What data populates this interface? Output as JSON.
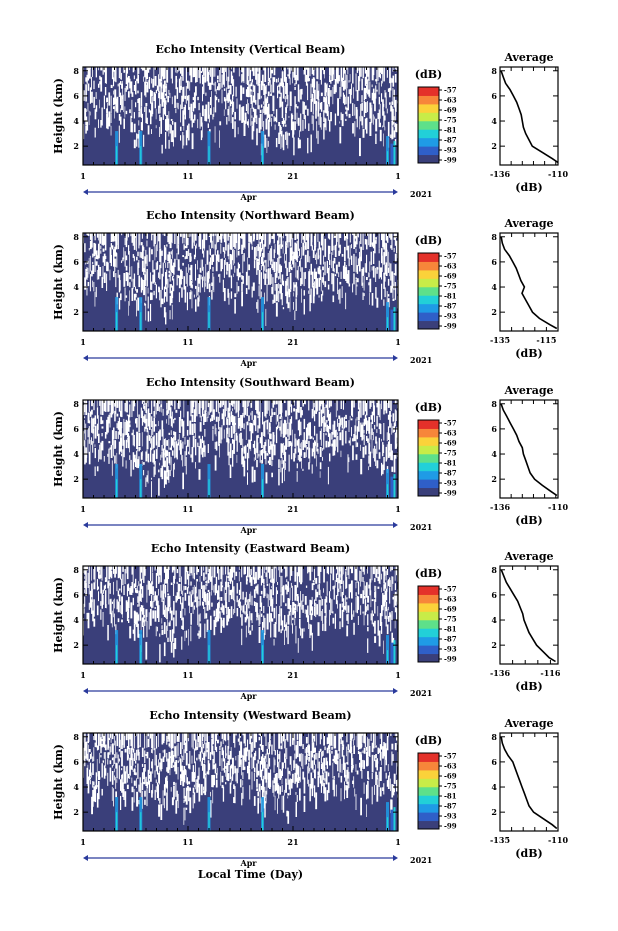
{
  "figure": {
    "shared_xlabel": "Local Time (Day)",
    "month_label": "Apr",
    "year_label": "2021",
    "colors": {
      "background": "#3a3f7a",
      "echo_gap": "#ffffff",
      "colormap": [
        "#3a3f7a",
        "#2f5fc8",
        "#1f9be6",
        "#22d0d8",
        "#5ee08a",
        "#c8ec48",
        "#fbd23a",
        "#f7863a",
        "#e4312a"
      ]
    }
  },
  "chart_data": [
    {
      "type": "heatmap",
      "title": "Echo Intensity (Vertical Beam)",
      "ylabel": "Height (km)",
      "yticks": [
        "2",
        "4",
        "6",
        "8"
      ],
      "ylim": [
        0.5,
        8.3
      ],
      "xticks": [
        "1",
        "11",
        "21",
        "1"
      ],
      "xlim_days": [
        1,
        31
      ],
      "colorbar": {
        "label": "(dB)",
        "ticks": [
          "-57",
          "-63",
          "-69",
          "-75",
          "-81",
          "-87",
          "-93",
          "-99"
        ]
      },
      "bright_columns_day": [
        4.2,
        6.5,
        13.0,
        18.1,
        30.0
      ],
      "profile": {
        "title": "Average",
        "xlabel": "(dB)",
        "xticks": [
          "-136",
          "-110"
        ],
        "xlim": [
          -136,
          -110
        ],
        "yticks": [
          "2",
          "4",
          "6",
          "8"
        ],
        "heights": [
          8.0,
          7.5,
          7.0,
          6.5,
          6.0,
          5.5,
          5.0,
          4.5,
          4.0,
          3.5,
          3.0,
          2.5,
          2.0,
          1.5,
          1.0,
          0.7
        ],
        "values": [
          -135.5,
          -134.5,
          -133.5,
          -131.5,
          -130.0,
          -128.5,
          -127.5,
          -126.5,
          -126.0,
          -125.5,
          -124.5,
          -123.0,
          -121.5,
          -117.0,
          -112.5,
          -110.0
        ]
      }
    },
    {
      "type": "heatmap",
      "title": "Echo Intensity (Northward Beam)",
      "ylabel": "Height (km)",
      "yticks": [
        "2",
        "4",
        "6",
        "8"
      ],
      "ylim": [
        0.5,
        8.3
      ],
      "xticks": [
        "1",
        "11",
        "21",
        "1"
      ],
      "xlim_days": [
        1,
        31
      ],
      "colorbar": {
        "label": "(dB)",
        "ticks": [
          "-57",
          "-63",
          "-69",
          "-75",
          "-81",
          "-87",
          "-93",
          "-99"
        ]
      },
      "bright_columns_day": [
        4.2,
        6.5,
        13.0,
        18.1,
        30.0
      ],
      "profile": {
        "title": "Average",
        "xlabel": "(dB)",
        "xticks": [
          "-135",
          "-115"
        ],
        "xlim": [
          -135,
          -110
        ],
        "yticks": [
          "2",
          "4",
          "6",
          "8"
        ],
        "heights": [
          8.0,
          7.5,
          7.0,
          6.5,
          6.0,
          5.5,
          5.0,
          4.5,
          4.0,
          3.5,
          3.0,
          2.5,
          2.0,
          1.5,
          1.0,
          0.7
        ],
        "values": [
          -134.5,
          -134.0,
          -133.0,
          -131.0,
          -129.5,
          -128.0,
          -127.0,
          -126.0,
          -124.5,
          -125.5,
          -124.0,
          -122.5,
          -121.0,
          -118.0,
          -113.5,
          -110.5
        ]
      }
    },
    {
      "type": "heatmap",
      "title": "Echo Intensity (Southward Beam)",
      "ylabel": "Height (km)",
      "yticks": [
        "2",
        "4",
        "6",
        "8"
      ],
      "ylim": [
        0.5,
        8.3
      ],
      "xticks": [
        "1",
        "11",
        "21",
        "1"
      ],
      "xlim_days": [
        1,
        31
      ],
      "colorbar": {
        "label": "(dB)",
        "ticks": [
          "-57",
          "-63",
          "-69",
          "-75",
          "-81",
          "-87",
          "-93",
          "-99"
        ]
      },
      "bright_columns_day": [
        4.2,
        6.5,
        13.0,
        18.1,
        30.0
      ],
      "profile": {
        "title": "Average",
        "xlabel": "(dB)",
        "xticks": [
          "-136",
          "-110"
        ],
        "xlim": [
          -136,
          -110
        ],
        "yticks": [
          "2",
          "4",
          "6",
          "8"
        ],
        "heights": [
          8.0,
          7.5,
          7.0,
          6.5,
          6.0,
          5.5,
          5.0,
          4.5,
          4.0,
          3.5,
          3.0,
          2.5,
          2.0,
          1.5,
          1.0,
          0.7
        ],
        "values": [
          -135.5,
          -134.5,
          -133.0,
          -131.5,
          -130.0,
          -128.5,
          -127.5,
          -126.0,
          -125.5,
          -124.5,
          -123.5,
          -122.5,
          -120.5,
          -117.0,
          -113.0,
          -110.5
        ]
      }
    },
    {
      "type": "heatmap",
      "title": "Echo Intensity (Eastward Beam)",
      "ylabel": "Height (km)",
      "yticks": [
        "2",
        "4",
        "6",
        "8"
      ],
      "ylim": [
        0.5,
        8.3
      ],
      "xticks": [
        "1",
        "11",
        "21",
        "1"
      ],
      "xlim_days": [
        1,
        31
      ],
      "colorbar": {
        "label": "(dB)",
        "ticks": [
          "-57",
          "-63",
          "-69",
          "-75",
          "-81",
          "-87",
          "-93",
          "-99"
        ]
      },
      "bright_columns_day": [
        4.2,
        6.5,
        13.0,
        18.1,
        30.0
      ],
      "profile": {
        "title": "Average",
        "xlabel": "(dB)",
        "xticks": [
          "-136",
          "-116"
        ],
        "xlim": [
          -136,
          -113
        ],
        "yticks": [
          "2",
          "4",
          "6",
          "8"
        ],
        "heights": [
          8.0,
          7.5,
          7.0,
          6.5,
          6.0,
          5.5,
          5.0,
          4.5,
          4.0,
          3.5,
          3.0,
          2.5,
          2.0,
          1.5,
          1.0,
          0.7
        ],
        "values": [
          -135.5,
          -134.5,
          -133.5,
          -132.0,
          -130.5,
          -129.0,
          -128.0,
          -127.0,
          -126.5,
          -125.5,
          -124.5,
          -123.0,
          -121.5,
          -119.0,
          -116.5,
          -114.0
        ]
      }
    },
    {
      "type": "heatmap",
      "title": "Echo Intensity (Westward Beam)",
      "ylabel": "Height (km)",
      "yticks": [
        "2",
        "4",
        "6",
        "8"
      ],
      "ylim": [
        0.5,
        8.3
      ],
      "xticks": [
        "1",
        "11",
        "21",
        "1"
      ],
      "xlim_days": [
        1,
        31
      ],
      "colorbar": {
        "label": "(dB)",
        "ticks": [
          "-57",
          "-63",
          "-69",
          "-75",
          "-81",
          "-87",
          "-93",
          "-99"
        ]
      },
      "bright_columns_day": [
        4.2,
        6.5,
        13.0,
        18.1,
        30.0
      ],
      "profile": {
        "title": "Average",
        "xlabel": "(dB)",
        "xticks": [
          "-135",
          "-110"
        ],
        "xlim": [
          -135,
          -110
        ],
        "yticks": [
          "2",
          "4",
          "6",
          "8"
        ],
        "heights": [
          8.0,
          7.5,
          7.0,
          6.5,
          6.0,
          5.5,
          5.0,
          4.5,
          4.0,
          3.5,
          3.0,
          2.5,
          2.0,
          1.5,
          1.0,
          0.7
        ],
        "values": [
          -134.5,
          -134.0,
          -133.0,
          -131.5,
          -129.5,
          -128.5,
          -127.5,
          -126.5,
          -125.5,
          -124.5,
          -123.5,
          -122.5,
          -120.5,
          -116.5,
          -112.5,
          -110.5
        ]
      }
    }
  ]
}
